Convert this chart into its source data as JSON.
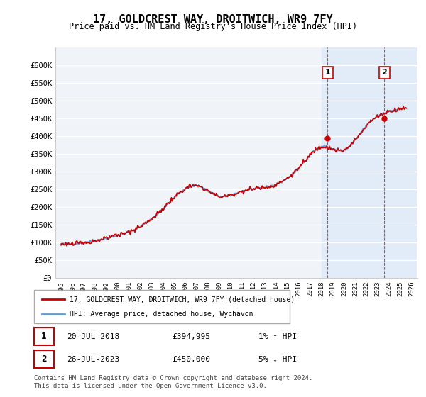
{
  "title": "17, GOLDCREST WAY, DROITWICH, WR9 7FY",
  "subtitle": "Price paid vs. HM Land Registry's House Price Index (HPI)",
  "legend_entry1": "17, GOLDCREST WAY, DROITWICH, WR9 7FY (detached house)",
  "legend_entry2": "HPI: Average price, detached house, Wychavon",
  "annotation1_label": "1",
  "annotation1_date": "20-JUL-2018",
  "annotation1_price": "£394,995",
  "annotation1_hpi": "1% ↑ HPI",
  "annotation2_label": "2",
  "annotation2_date": "26-JUL-2023",
  "annotation2_price": "£450,000",
  "annotation2_hpi": "5% ↓ HPI",
  "footer": "Contains HM Land Registry data © Crown copyright and database right 2024.\nThis data is licensed under the Open Government Licence v3.0.",
  "hpi_color": "#6699cc",
  "sale_color": "#cc0000",
  "annotation_color": "#cc0000",
  "sale1_x": 2018.55,
  "sale1_y": 394995,
  "sale2_x": 2023.57,
  "sale2_y": 450000,
  "ymin": 0,
  "ymax": 650000,
  "yticks": [
    0,
    50000,
    100000,
    150000,
    200000,
    250000,
    300000,
    350000,
    400000,
    450000,
    500000,
    550000,
    600000
  ],
  "ytick_labels": [
    "£0",
    "£50K",
    "£100K",
    "£150K",
    "£200K",
    "£250K",
    "£300K",
    "£350K",
    "£400K",
    "£450K",
    "£500K",
    "£550K",
    "£600K"
  ],
  "xmin": 1994.5,
  "xmax": 2026.5,
  "xticks": [
    1995,
    1996,
    1997,
    1998,
    1999,
    2000,
    2001,
    2002,
    2003,
    2004,
    2005,
    2006,
    2007,
    2008,
    2009,
    2010,
    2011,
    2012,
    2013,
    2014,
    2015,
    2016,
    2017,
    2018,
    2019,
    2020,
    2021,
    2022,
    2023,
    2024,
    2025,
    2026
  ],
  "bg_color": "#e8f0f8",
  "plot_bg": "#f0f4f8",
  "grid_color": "#ffffff",
  "shade_xmin": 2018.0,
  "shade_xmax": 2026.5
}
